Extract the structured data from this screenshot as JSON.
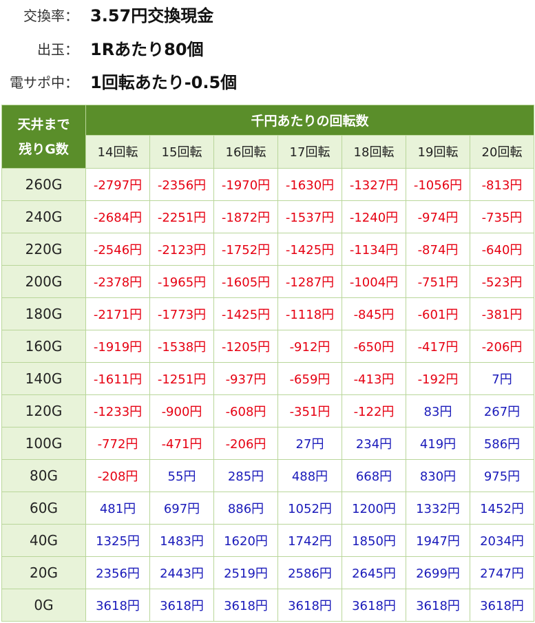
{
  "info": [
    {
      "label": "交換率：",
      "value": "3.57円交換現金"
    },
    {
      "label": "出玉：",
      "value": "1Rあたり80個"
    },
    {
      "label": "電サポ中：",
      "value": "1回転あたり-0.5個"
    }
  ],
  "table": {
    "corner_line1": "天井まで",
    "corner_line2": "残りG数",
    "group_header": "千円あたりの回転数",
    "columns": [
      "14回転",
      "15回転",
      "16回転",
      "17回転",
      "18回転",
      "19回転",
      "20回転"
    ],
    "rows": [
      {
        "label": "260G",
        "cells": [
          "-2797円",
          "-2356円",
          "-1970円",
          "-1630円",
          "-1327円",
          "-1056円",
          "-813円"
        ]
      },
      {
        "label": "240G",
        "cells": [
          "-2684円",
          "-2251円",
          "-1872円",
          "-1537円",
          "-1240円",
          "-974円",
          "-735円"
        ]
      },
      {
        "label": "220G",
        "cells": [
          "-2546円",
          "-2123円",
          "-1752円",
          "-1425円",
          "-1134円",
          "-874円",
          "-640円"
        ]
      },
      {
        "label": "200G",
        "cells": [
          "-2378円",
          "-1965円",
          "-1605円",
          "-1287円",
          "-1004円",
          "-751円",
          "-523円"
        ]
      },
      {
        "label": "180G",
        "cells": [
          "-2171円",
          "-1773円",
          "-1425円",
          "-1118円",
          "-845円",
          "-601円",
          "-381円"
        ]
      },
      {
        "label": "160G",
        "cells": [
          "-1919円",
          "-1538円",
          "-1205円",
          "-912円",
          "-650円",
          "-417円",
          "-206円"
        ]
      },
      {
        "label": "140G",
        "cells": [
          "-1611円",
          "-1251円",
          "-937円",
          "-659円",
          "-413円",
          "-192円",
          "7円"
        ]
      },
      {
        "label": "120G",
        "cells": [
          "-1233円",
          "-900円",
          "-608円",
          "-351円",
          "-122円",
          "83円",
          "267円"
        ]
      },
      {
        "label": "100G",
        "cells": [
          "-772円",
          "-471円",
          "-206円",
          "27円",
          "234円",
          "419円",
          "586円"
        ]
      },
      {
        "label": "80G",
        "cells": [
          "-208円",
          "55円",
          "285円",
          "488円",
          "668円",
          "830円",
          "975円"
        ]
      },
      {
        "label": "60G",
        "cells": [
          "481円",
          "697円",
          "886円",
          "1052円",
          "1200円",
          "1332円",
          "1452円"
        ]
      },
      {
        "label": "40G",
        "cells": [
          "1325円",
          "1483円",
          "1620円",
          "1742円",
          "1850円",
          "1947円",
          "2034円"
        ]
      },
      {
        "label": "20G",
        "cells": [
          "2356円",
          "2443円",
          "2519円",
          "2586円",
          "2645円",
          "2699円",
          "2747円"
        ]
      },
      {
        "label": "0G",
        "cells": [
          "3618円",
          "3618円",
          "3618円",
          "3618円",
          "3618円",
          "3618円",
          "3618円"
        ]
      }
    ]
  },
  "colors": {
    "header_green": "#5a8e2a",
    "header_light": "#e8f3d9",
    "negative": "#e60012",
    "positive": "#1a1aba"
  }
}
